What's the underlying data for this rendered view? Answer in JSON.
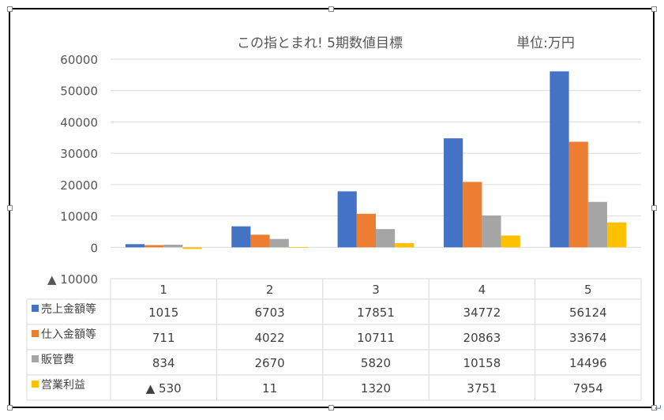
{
  "colors": {
    "border": "#000000",
    "gridline": "#d9d9d9",
    "text": "#555555",
    "table_text": "#404040"
  },
  "chart_data": {
    "type": "bar",
    "title": "この指とまれ!  5期数値目標",
    "unit_label": "単位:万円",
    "categories": [
      "1",
      "2",
      "3",
      "4",
      "5"
    ],
    "ylim": [
      -10000,
      60000
    ],
    "y_ticks": [
      {
        "value": 60000,
        "label": "60000"
      },
      {
        "value": 50000,
        "label": "50000"
      },
      {
        "value": 40000,
        "label": "40000"
      },
      {
        "value": 30000,
        "label": "30000"
      },
      {
        "value": 20000,
        "label": "20000"
      },
      {
        "value": 10000,
        "label": "10000"
      },
      {
        "value": 0,
        "label": "0"
      },
      {
        "value": -10000,
        "label": "▲ 10000"
      }
    ],
    "grid": true,
    "legend": "data-table",
    "series": [
      {
        "name": "売上金額等",
        "color": "#4472c4",
        "values": [
          1015,
          6703,
          17851,
          34772,
          56124
        ],
        "labels": [
          "1015",
          "6703",
          "17851",
          "34772",
          "56124"
        ]
      },
      {
        "name": "仕入金額等",
        "color": "#ed7d31",
        "values": [
          711,
          4022,
          10711,
          20863,
          33674
        ],
        "labels": [
          "711",
          "4022",
          "10711",
          "20863",
          "33674"
        ]
      },
      {
        "name": "販管費",
        "color": "#a5a5a5",
        "values": [
          834,
          2670,
          5820,
          10158,
          14496
        ],
        "labels": [
          "834",
          "2670",
          "5820",
          "10158",
          "14496"
        ]
      },
      {
        "name": "営業利益",
        "color": "#ffc000",
        "values": [
          -530,
          11,
          1320,
          3751,
          7954
        ],
        "labels": [
          "▲ 530",
          "11",
          "1320",
          "3751",
          "7954"
        ]
      }
    ]
  }
}
